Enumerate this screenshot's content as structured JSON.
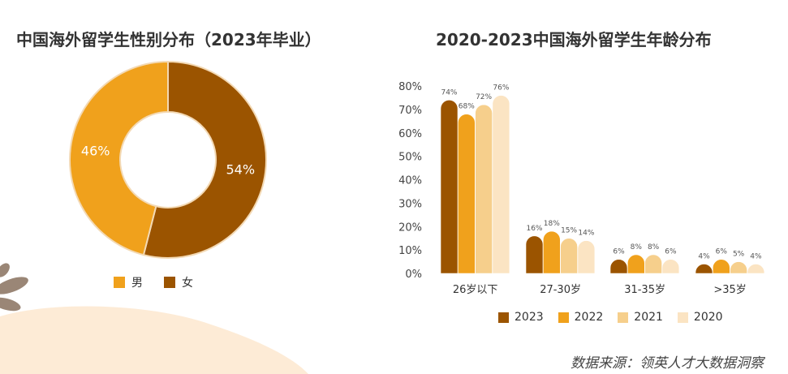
{
  "colors": {
    "y2023": "#9b5400",
    "y2022": "#f0a11c",
    "y2021": "#f6cf8c",
    "y2020": "#fbe4c3",
    "male": "#f0a11c",
    "female": "#9b5400",
    "bg_wave": "#fdebd6"
  },
  "left": {
    "title": "中国海外留学生性别分布（2023年毕业）",
    "legend": [
      {
        "label": "男",
        "color": "#f0a11c"
      },
      {
        "label": "女",
        "color": "#9b5400"
      }
    ]
  },
  "right": {
    "title": "2020-2023中国海外留学生年龄分布",
    "legend": [
      {
        "label": "2023",
        "color": "#9b5400"
      },
      {
        "label": "2022",
        "color": "#f0a11c"
      },
      {
        "label": "2021",
        "color": "#f6cf8c"
      },
      {
        "label": "2020",
        "color": "#fbe4c3"
      }
    ]
  },
  "source": "数据来源：领英人才大数据洞察",
  "chart_data": [
    {
      "type": "pie",
      "variant": "donut",
      "title": "中国海外留学生性别分布（2023年毕业）",
      "slices": [
        {
          "label": "男",
          "value": 46,
          "value_label": "46%",
          "color": "#f0a11c"
        },
        {
          "label": "女",
          "value": 54,
          "value_label": "54%",
          "color": "#9b5400"
        }
      ],
      "legend_position": "bottom"
    },
    {
      "type": "bar",
      "title": "2020-2023中国海外留学生年龄分布",
      "categories": [
        "26岁以下",
        "27-30岁",
        "31-35岁",
        ">35岁"
      ],
      "series": [
        {
          "name": "2023",
          "values": [
            74,
            16,
            6,
            4
          ],
          "color": "#9b5400"
        },
        {
          "name": "2022",
          "values": [
            68,
            18,
            8,
            6
          ],
          "color": "#f0a11c"
        },
        {
          "name": "2021",
          "values": [
            72,
            15,
            8,
            5
          ],
          "color": "#f6cf8c"
        },
        {
          "name": "2020",
          "values": [
            76,
            14,
            6,
            4
          ],
          "color": "#fbe4c3"
        }
      ],
      "yticks": [
        "0%",
        "10%",
        "20%",
        "30%",
        "40%",
        "50%",
        "60%",
        "70%",
        "80%"
      ],
      "ylim": [
        0,
        80
      ],
      "legend_position": "bottom",
      "grid": false
    }
  ]
}
